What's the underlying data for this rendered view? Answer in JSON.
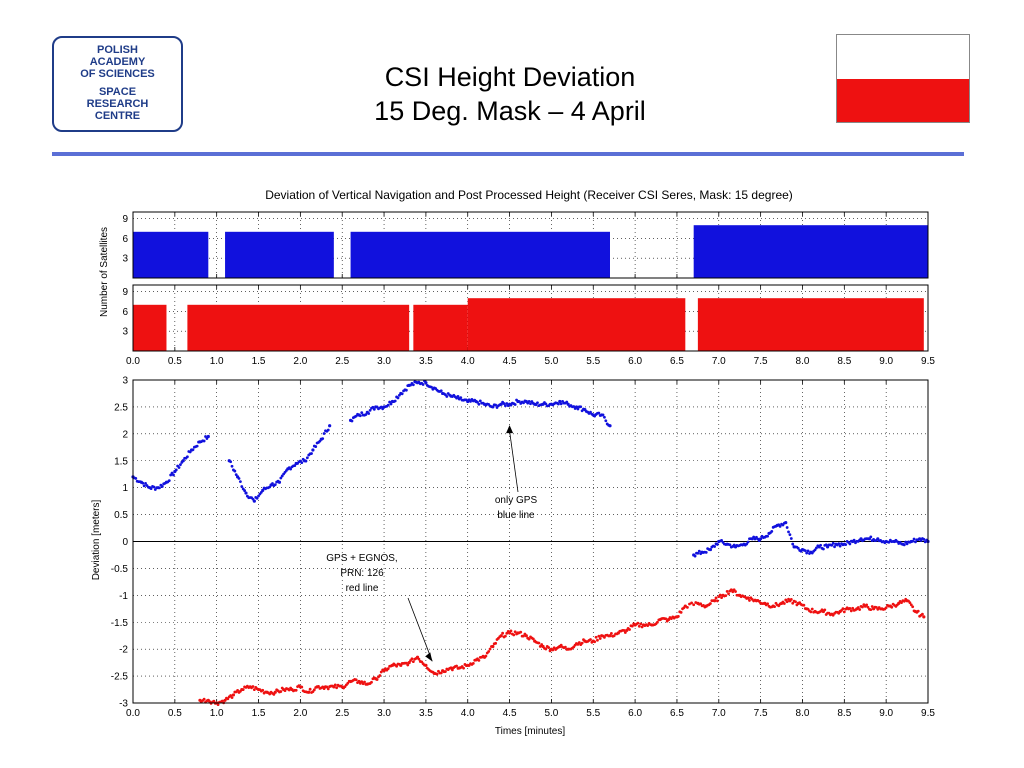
{
  "logo": {
    "line1": "POLISH",
    "line2": "ACADEMY",
    "line3": "OF SCIENCES",
    "line4": "SPACE",
    "line5": "RESEARCH",
    "line6": "CENTRE"
  },
  "slide": {
    "title_line1": "CSI Height Deviation",
    "title_line2": "15 Deg. Mask – 4 April"
  },
  "colors": {
    "accent": "#5b6fd6",
    "flag_red": "#ee1111",
    "blue_series": "#1111dd",
    "red_series": "#ee1111"
  },
  "chart_data": [
    {
      "type": "area",
      "title": "Deviation of Vertical Navigation and Post Processed Height (Receiver CSI Seres, Mask: 15 degree)",
      "ylabel": "Number of Satellites",
      "xlim": [
        0,
        9.5
      ],
      "ylim": [
        0,
        10
      ],
      "yticks": [
        "3",
        "6",
        "9"
      ],
      "grid": true,
      "series": [
        {
          "name": "GPS",
          "color": "#1111dd",
          "segments": [
            [
              0.0,
              0.9,
              7
            ],
            [
              1.1,
              2.4,
              7
            ],
            [
              2.6,
              5.7,
              7
            ],
            [
              6.7,
              9.5,
              8
            ]
          ]
        }
      ]
    },
    {
      "type": "area",
      "ylabel": "Number of Satellites",
      "xlim": [
        0,
        9.5
      ],
      "ylim": [
        0,
        10
      ],
      "yticks": [
        "3",
        "6",
        "9"
      ],
      "xticks": [
        "0.0",
        "0.5",
        "1.0",
        "1.5",
        "2.0",
        "2.5",
        "3.0",
        "3.5",
        "4.0",
        "4.5",
        "5.0",
        "5.5",
        "6.0",
        "6.5",
        "7.0",
        "7.5",
        "8.0",
        "8.5",
        "9.0",
        "9.5"
      ],
      "grid": true,
      "series": [
        {
          "name": "GPS + EGNOS",
          "color": "#ee1111",
          "segments": [
            [
              0.0,
              0.4,
              7
            ],
            [
              0.65,
              3.3,
              7
            ],
            [
              3.35,
              4.0,
              7
            ],
            [
              4.0,
              6.6,
              8
            ],
            [
              6.75,
              9.45,
              8
            ]
          ]
        }
      ]
    },
    {
      "type": "scatter",
      "xlabel": "Times [minutes]",
      "ylabel": "Deviation [meters]",
      "xlim": [
        0,
        9.5
      ],
      "ylim": [
        -3,
        3
      ],
      "yticks": [
        "3",
        "2.5",
        "2",
        "1.5",
        "1",
        "0.5",
        "0",
        "-0.5",
        "-1",
        "-1.5",
        "-2",
        "-2.5",
        "-3"
      ],
      "xticks": [
        "0.0",
        "0.5",
        "1.0",
        "1.5",
        "2.0",
        "2.5",
        "3.0",
        "3.5",
        "4.0",
        "4.5",
        "5.0",
        "5.5",
        "6.0",
        "6.5",
        "7.0",
        "7.5",
        "8.0",
        "8.5",
        "9.0",
        "9.5"
      ],
      "grid": true,
      "zero_line": true,
      "series": [
        {
          "name": "only GPS blue line",
          "color": "#1111dd",
          "x": [
            0.0,
            0.1,
            0.2,
            0.3,
            0.4,
            0.5,
            0.6,
            0.7,
            0.8,
            0.9,
            1.15,
            1.25,
            1.35,
            1.45,
            1.55,
            1.65,
            1.75,
            1.85,
            1.95,
            2.05,
            2.15,
            2.25,
            2.35,
            2.6,
            2.7,
            2.8,
            2.9,
            3.0,
            3.1,
            3.2,
            3.3,
            3.4,
            3.5,
            3.6,
            3.7,
            3.8,
            3.9,
            4.0,
            4.1,
            4.2,
            4.3,
            4.4,
            4.5,
            4.6,
            4.7,
            4.8,
            4.9,
            5.0,
            5.1,
            5.2,
            5.3,
            5.4,
            5.5,
            5.6,
            5.7,
            6.7,
            6.8,
            6.9,
            7.0,
            7.1,
            7.2,
            7.3,
            7.4,
            7.5,
            7.6,
            7.7,
            7.8,
            7.9,
            8.0,
            8.1,
            8.2,
            8.3,
            8.4,
            8.5,
            8.6,
            8.7,
            8.8,
            8.9,
            9.0,
            9.1,
            9.2,
            9.3,
            9.4,
            9.5
          ],
          "y": [
            1.2,
            1.1,
            1.0,
            1.0,
            1.1,
            1.3,
            1.5,
            1.7,
            1.85,
            1.95,
            1.5,
            1.2,
            0.9,
            0.75,
            0.95,
            1.05,
            1.1,
            1.35,
            1.45,
            1.5,
            1.7,
            1.9,
            2.15,
            2.25,
            2.35,
            2.4,
            2.5,
            2.5,
            2.6,
            2.75,
            2.9,
            2.95,
            2.95,
            2.85,
            2.75,
            2.7,
            2.65,
            2.6,
            2.6,
            2.55,
            2.5,
            2.55,
            2.55,
            2.6,
            2.6,
            2.55,
            2.55,
            2.55,
            2.6,
            2.55,
            2.5,
            2.45,
            2.35,
            2.35,
            2.15,
            -0.25,
            -0.2,
            -0.15,
            0.0,
            -0.05,
            -0.1,
            -0.05,
            0.05,
            0.05,
            0.15,
            0.3,
            0.35,
            -0.1,
            -0.15,
            -0.2,
            -0.1,
            -0.1,
            -0.05,
            -0.05,
            0.0,
            0.05,
            0.05,
            0.05,
            0.0,
            0.0,
            -0.05,
            0.0,
            0.05,
            0.0
          ]
        },
        {
          "name": "GPS + EGNOS, PRN: 126 red line",
          "color": "#ee1111",
          "x": [
            0.8,
            0.9,
            1.0,
            1.1,
            1.2,
            1.3,
            1.4,
            1.5,
            1.6,
            1.7,
            1.8,
            1.9,
            2.0,
            2.1,
            2.2,
            2.3,
            2.4,
            2.5,
            2.6,
            2.7,
            2.8,
            2.9,
            3.0,
            3.1,
            3.2,
            3.3,
            3.4,
            3.5,
            3.6,
            3.7,
            3.8,
            3.9,
            4.0,
            4.1,
            4.2,
            4.3,
            4.4,
            4.5,
            4.6,
            4.7,
            4.8,
            4.9,
            5.0,
            5.1,
            5.2,
            5.3,
            5.4,
            5.5,
            5.6,
            5.7,
            5.8,
            5.9,
            6.0,
            6.1,
            6.2,
            6.3,
            6.4,
            6.5,
            6.6,
            6.75,
            6.85,
            6.95,
            7.05,
            7.15,
            7.25,
            7.35,
            7.45,
            7.55,
            7.65,
            7.75,
            7.85,
            7.95,
            8.05,
            8.15,
            8.25,
            8.35,
            8.45,
            8.55,
            8.65,
            8.75,
            8.85,
            8.95,
            9.05,
            9.15,
            9.25,
            9.35,
            9.45
          ],
          "y": [
            -2.95,
            -2.95,
            -3.0,
            -2.95,
            -2.85,
            -2.75,
            -2.7,
            -2.75,
            -2.8,
            -2.8,
            -2.75,
            -2.75,
            -2.7,
            -2.8,
            -2.7,
            -2.7,
            -2.7,
            -2.7,
            -2.6,
            -2.6,
            -2.65,
            -2.55,
            -2.4,
            -2.3,
            -2.3,
            -2.25,
            -2.15,
            -2.3,
            -2.45,
            -2.4,
            -2.35,
            -2.35,
            -2.3,
            -2.2,
            -2.15,
            -1.95,
            -1.75,
            -1.7,
            -1.7,
            -1.75,
            -1.85,
            -1.95,
            -2.0,
            -1.95,
            -2.0,
            -1.9,
            -1.85,
            -1.85,
            -1.75,
            -1.75,
            -1.7,
            -1.65,
            -1.55,
            -1.55,
            -1.55,
            -1.45,
            -1.45,
            -1.4,
            -1.2,
            -1.15,
            -1.2,
            -1.1,
            -1.0,
            -0.9,
            -1.0,
            -1.05,
            -1.1,
            -1.15,
            -1.2,
            -1.15,
            -1.1,
            -1.15,
            -1.25,
            -1.3,
            -1.3,
            -1.35,
            -1.3,
            -1.25,
            -1.25,
            -1.2,
            -1.25,
            -1.25,
            -1.2,
            -1.15,
            -1.1,
            -1.3,
            -1.4
          ]
        }
      ],
      "annotations": [
        {
          "text_line1": "only GPS",
          "text_line2": "blue line",
          "x": 4.5,
          "y": 2.2
        },
        {
          "text_line1": "GPS + EGNOS,",
          "text_line2": "PRN: 126",
          "text_line3": "red line",
          "x": 3.6,
          "y": -2.3
        }
      ]
    }
  ]
}
